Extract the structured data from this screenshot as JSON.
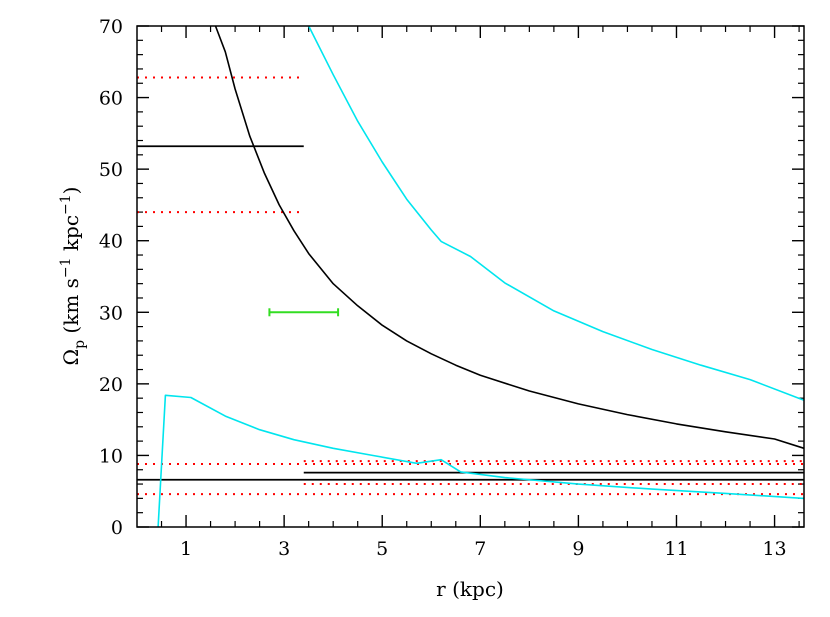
{
  "chart_data": {
    "type": "line",
    "xlabel": "r (kpc)",
    "ylabel": {
      "main": "Ω",
      "sub": "p",
      "rest1": " (km s",
      "sup1": "−1",
      "rest2": " kpc",
      "sup2": "−1",
      "rest3": ")"
    },
    "xlim": [
      0.0,
      13.6
    ],
    "ylim": [
      0,
      70
    ],
    "xticks": [
      1,
      3,
      5,
      7,
      9,
      11,
      13
    ],
    "yticks": [
      0,
      10,
      20,
      30,
      40,
      50,
      60,
      70
    ],
    "xtick_labels": [
      "1",
      "3",
      "5",
      "7",
      "9",
      "11",
      "13"
    ],
    "ytick_labels": [
      "0",
      "10",
      "20",
      "30",
      "40",
      "50",
      "60",
      "70"
    ],
    "grid": false,
    "series": [
      {
        "color": "#000000",
        "style": "solid",
        "x": [
          1.6,
          1.8,
          2.0,
          2.3,
          2.6,
          2.9,
          3.2,
          3.5,
          4.0,
          4.5,
          5.0,
          5.5,
          6.0,
          6.5,
          7.0,
          8.0,
          9.0,
          10.0,
          11.0,
          12.0,
          13.0,
          13.6
        ],
        "y": [
          70.0,
          66.4,
          61.2,
          54.6,
          49.4,
          45.0,
          41.4,
          38.2,
          34.0,
          30.9,
          28.2,
          26.0,
          24.2,
          22.6,
          21.2,
          19.0,
          17.2,
          15.7,
          14.4,
          13.3,
          12.3,
          11.0
        ]
      },
      {
        "color": "#00e5ee",
        "style": "solid",
        "x": [
          3.5,
          4.0,
          4.5,
          5.0,
          5.5,
          6.0,
          6.2,
          6.8,
          7.5,
          8.5,
          9.5,
          10.5,
          11.5,
          12.5,
          13.6
        ],
        "y": [
          70.0,
          63.2,
          56.7,
          51.0,
          45.8,
          41.5,
          39.9,
          37.8,
          34.1,
          30.2,
          27.3,
          24.8,
          22.6,
          20.6,
          17.7
        ]
      },
      {
        "color": "#00e5ee",
        "style": "solid",
        "x": [
          0.43,
          0.58,
          1.1,
          1.8,
          2.5,
          3.2,
          4.0,
          4.8,
          5.7,
          6.2,
          6.6,
          7.5,
          9.0,
          10.5,
          12.0,
          13.6
        ],
        "y": [
          0.0,
          18.4,
          18.1,
          15.5,
          13.6,
          12.2,
          11.0,
          10.0,
          8.9,
          9.4,
          7.7,
          6.9,
          6.0,
          5.3,
          4.7,
          4.0
        ]
      }
    ],
    "hlines": [
      {
        "y": 62.8,
        "x0": 0.0,
        "x1": 3.4,
        "color": "#ff0000",
        "style": "dotted"
      },
      {
        "y": 53.2,
        "x0": 0.0,
        "x1": 3.4,
        "color": "#000000",
        "style": "solid"
      },
      {
        "y": 44.0,
        "x0": 0.0,
        "x1": 3.4,
        "color": "#ff0000",
        "style": "dotted"
      },
      {
        "y": 9.2,
        "x0": 3.4,
        "x1": 13.6,
        "color": "#ff0000",
        "style": "dotted"
      },
      {
        "y": 8.8,
        "x0": 0.0,
        "x1": 13.6,
        "color": "#ff0000",
        "style": "dotted"
      },
      {
        "y": 7.6,
        "x0": 3.4,
        "x1": 13.6,
        "color": "#000000",
        "style": "solid"
      },
      {
        "y": 6.6,
        "x0": 0.0,
        "x1": 13.6,
        "color": "#000000",
        "style": "solid"
      },
      {
        "y": 6.0,
        "x0": 3.4,
        "x1": 13.6,
        "color": "#ff0000",
        "style": "dotted"
      },
      {
        "y": 4.6,
        "x0": 0.0,
        "x1": 13.6,
        "color": "#ff0000",
        "style": "dotted"
      }
    ],
    "errorbar": {
      "x0": 2.7,
      "x1": 4.1,
      "y": 30.0,
      "color": "#33dd22"
    }
  }
}
